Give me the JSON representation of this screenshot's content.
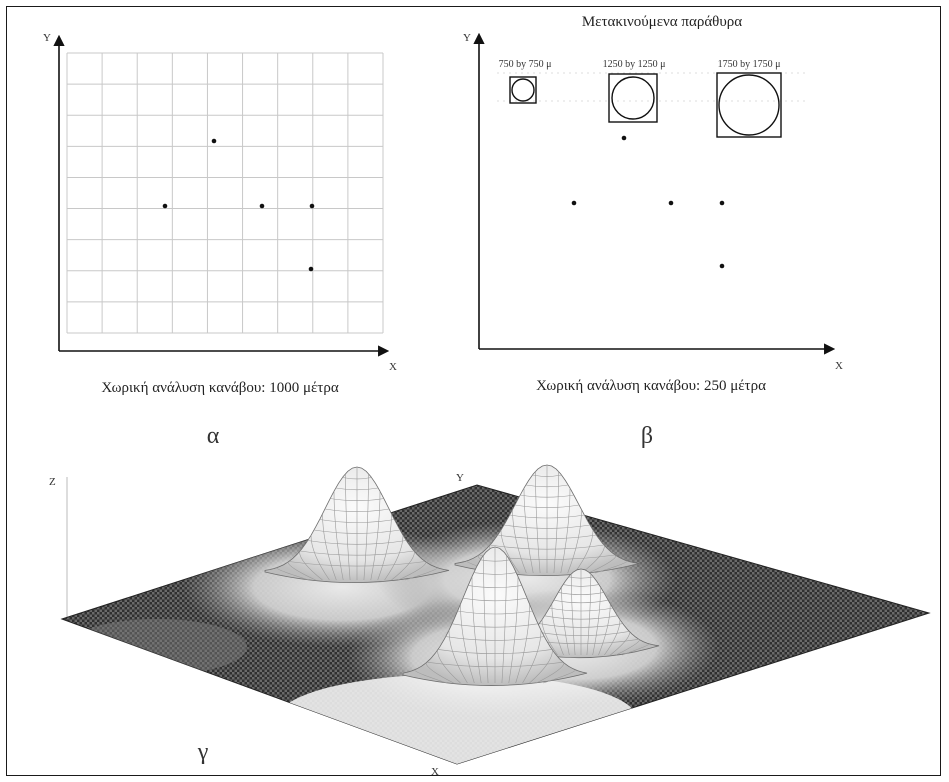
{
  "panels": {
    "a": {
      "letter": "α",
      "caption": "Χωρική ανάλυση κανάβου: 1000 μέτρα",
      "x_axis_label": "X",
      "y_axis_label": "Y",
      "grid_cells": 9
    },
    "b": {
      "letter": "β",
      "title": "Μετακινούμενα παράθυρα",
      "caption": "Χωρική ανάλυση κανάβου: 250 μέτρα",
      "x_axis_label": "X",
      "y_axis_label": "Y",
      "windows": [
        {
          "label": "750 by 750 μ"
        },
        {
          "label": "1250 by 1250 μ"
        },
        {
          "label": "1750 by 1750 μ"
        }
      ]
    },
    "c": {
      "letter": "γ",
      "x_axis_label": "X",
      "y_axis_label": "Y",
      "z_axis_label": "Z"
    }
  },
  "colors": {
    "ink": "#111111",
    "grid": "#c8c8c8",
    "surface_dark": "#3a3a3a",
    "surface_light": "#f4f4f4"
  }
}
